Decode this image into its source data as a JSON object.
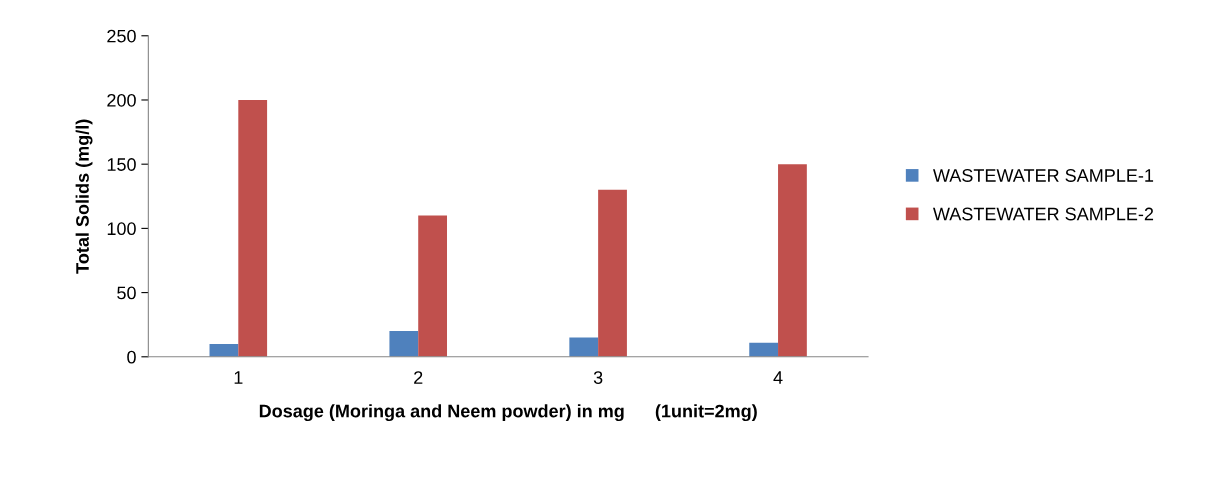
{
  "chart_data": {
    "type": "bar",
    "xlabel": "Dosage (Moringa and Neem powder) in mg      (1unit=2mg)",
    "ylabel": "Total Solids (mg/l)",
    "categories": [
      "1",
      "2",
      "3",
      "4"
    ],
    "series": [
      {
        "name": "WASTEWATER SAMPLE-1",
        "color": "#4f81bd",
        "values": [
          10,
          20,
          15,
          11
        ]
      },
      {
        "name": "WASTEWATER SAMPLE-2",
        "color": "#c0504d",
        "values": [
          200,
          110,
          130,
          150
        ]
      }
    ],
    "ylim": [
      0,
      250
    ],
    "yticks": [
      0,
      50,
      100,
      150,
      200,
      250
    ],
    "grid": false,
    "legend": "right"
  }
}
